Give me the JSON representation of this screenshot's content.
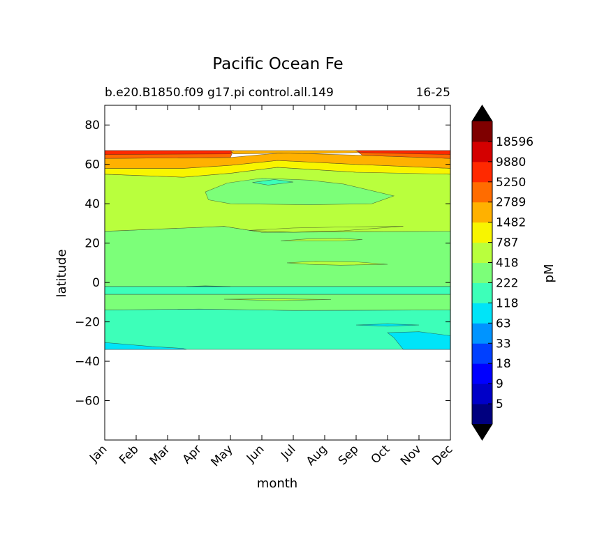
{
  "chart_data": {
    "type": "contour",
    "title": "Pacific Ocean Fe",
    "subtitle_left": "b.e20.B1850.f09 g17.pi control.all.149",
    "subtitle_right": "16-25",
    "xlabel": "month",
    "ylabel": "latitude",
    "x_categories": [
      "Jan",
      "Feb",
      "Mar",
      "Apr",
      "May",
      "Jun",
      "Jul",
      "Aug",
      "Sep",
      "Oct",
      "Nov",
      "Dec"
    ],
    "ylim": [
      -80,
      90
    ],
    "y_ticks": [
      80,
      60,
      40,
      20,
      0,
      -20,
      -40,
      -60
    ],
    "y_tick_labels": [
      "80",
      "60",
      "40",
      "20",
      "0",
      "−20",
      "−40",
      "−60"
    ],
    "data_lat_range": [
      -34,
      67
    ],
    "colorbar": {
      "label": "pM",
      "extend": "both",
      "levels": [
        5,
        9,
        18,
        33,
        63,
        118,
        222,
        418,
        787,
        1482,
        2789,
        5250,
        9880,
        18596
      ],
      "tick_labels": [
        "5",
        "9",
        "18",
        "33",
        "63",
        "118",
        "222",
        "418",
        "787",
        "1482",
        "2789",
        "5250",
        "9880",
        "18596"
      ],
      "colors": [
        "#00007f",
        "#0000c8",
        "#0000ff",
        "#0040ff",
        "#0094ff",
        "#00e4f8",
        "#3dffb9",
        "#7cff79",
        "#b9ff3d",
        "#f8f500",
        "#ffb100",
        "#ff6c00",
        "#ff2900",
        "#d40000",
        "#7f0000"
      ],
      "under_color": "#000000",
      "over_color": "#000000"
    },
    "bands": [
      {
        "label": "2789-5250",
        "lat_south": 63,
        "lat_north": 67,
        "month_range": [
          0,
          4.1
        ]
      },
      {
        "label": "5250-9880",
        "lat_south": 65,
        "lat_north": 67,
        "month_range": [
          0,
          4.1
        ]
      },
      {
        "label": "2789-5250 (late)",
        "lat_south": 63,
        "lat_north": 67,
        "month_range": [
          8,
          11
        ]
      },
      {
        "label": "5250-9880 (late)",
        "lat_south": 65,
        "lat_north": 67,
        "month_range": [
          8.1,
          11
        ]
      },
      {
        "label": "1482-2789",
        "lat_south": 58,
        "lat_north": 63
      },
      {
        "label": "787-1482",
        "lat_south": 55,
        "lat_north": 58
      },
      {
        "label": "418-787",
        "lat_south": 26,
        "lat_north": 55
      },
      {
        "label": "222-418",
        "lat_south": -2,
        "lat_north": 26
      },
      {
        "label": "118-222",
        "lat_south": -6,
        "lat_north": -2
      },
      {
        "label": "222-418 (south)",
        "lat_south": -14,
        "lat_north": -6
      },
      {
        "label": "118-222 (south)",
        "lat_south": -34,
        "lat_north": -14
      },
      {
        "label": "63-118 (SE corner)",
        "lat_south": -34,
        "lat_north": -25,
        "month_range": [
          9,
          11
        ]
      }
    ]
  }
}
